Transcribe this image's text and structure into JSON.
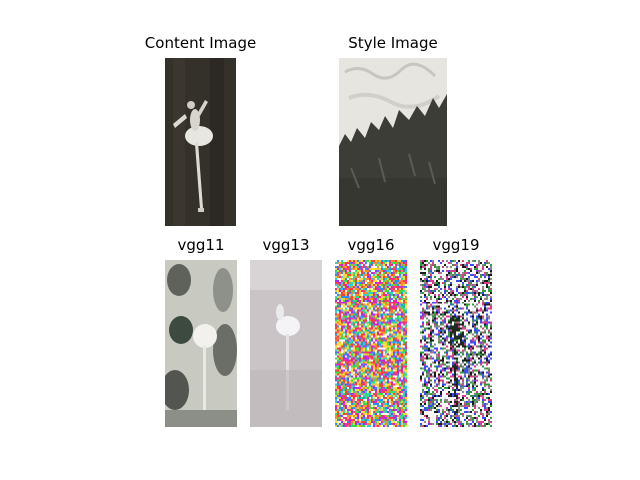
{
  "panels": {
    "content": {
      "title": "Content Image"
    },
    "style": {
      "title": "Style Image"
    },
    "vgg11": {
      "title": "vgg11"
    },
    "vgg13": {
      "title": "vgg13"
    },
    "vgg16": {
      "title": "vgg16"
    },
    "vgg19": {
      "title": "vgg19"
    }
  }
}
